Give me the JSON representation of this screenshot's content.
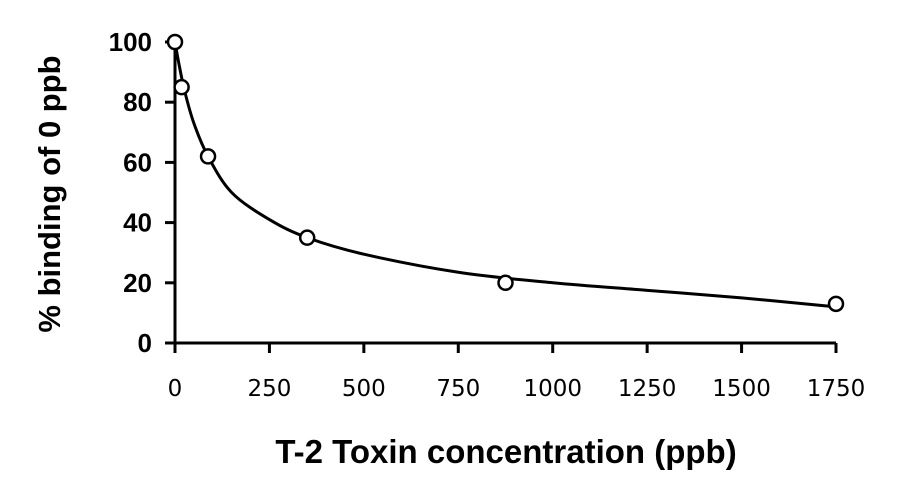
{
  "chart_data": {
    "type": "scatter",
    "title": "",
    "xlabel": "T-2 Toxin concentration (ppb)",
    "ylabel": "% binding of 0 ppb",
    "xlim": [
      0,
      1750
    ],
    "ylim": [
      0,
      100
    ],
    "x_ticks": [
      "0",
      "250",
      "500",
      "750",
      "1000",
      "1250",
      "1500",
      "1750"
    ],
    "y_ticks": [
      "0",
      "20",
      "40",
      "60",
      "80",
      "100"
    ],
    "grid": false,
    "legend": "none",
    "series": [
      {
        "points": [
          {
            "x": 0,
            "y": 100
          },
          {
            "x": 17.5,
            "y": 85
          },
          {
            "x": 87.5,
            "y": 62
          },
          {
            "x": 350,
            "y": 35
          },
          {
            "x": 875,
            "y": 20
          },
          {
            "x": 1750,
            "y": 13
          }
        ],
        "marker": "open-circle",
        "color": "#000000"
      }
    ],
    "fit_curve": {
      "points": [
        {
          "x": 0,
          "y": 100
        },
        {
          "x": 10,
          "y": 93
        },
        {
          "x": 25,
          "y": 84
        },
        {
          "x": 50,
          "y": 73
        },
        {
          "x": 87.5,
          "y": 62
        },
        {
          "x": 150,
          "y": 50
        },
        {
          "x": 250,
          "y": 41
        },
        {
          "x": 350,
          "y": 35
        },
        {
          "x": 500,
          "y": 29.5
        },
        {
          "x": 750,
          "y": 23.5
        },
        {
          "x": 1000,
          "y": 20
        },
        {
          "x": 1250,
          "y": 17.5
        },
        {
          "x": 1500,
          "y": 15
        },
        {
          "x": 1750,
          "y": 12
        }
      ],
      "color": "#000000"
    }
  }
}
